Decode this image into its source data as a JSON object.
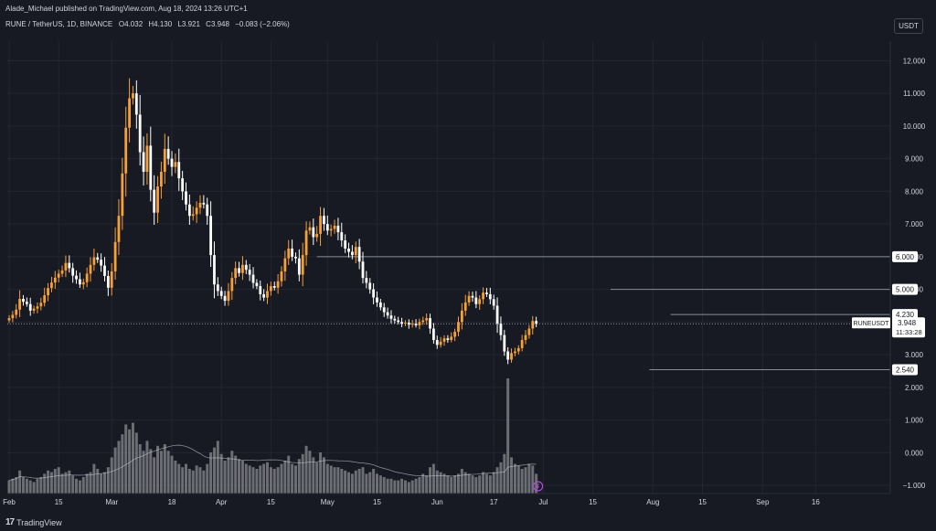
{
  "header": {
    "publisher_line": "Alade_Michael published on TradingView.com, Aug 18, 2024 13:26 UTC+1"
  },
  "legend": {
    "symbol": "RUNE / TetherUS, 1D, BINANCE",
    "o_label": "O",
    "o": "4.032",
    "h_label": "H",
    "h": "4.130",
    "l_label": "L",
    "l": "3.921",
    "c_label": "C",
    "c": "3.948",
    "change": "−0.083 (−2.06%)"
  },
  "currency_button": "USDT",
  "footer": {
    "brand": "TradingView",
    "logo": "17"
  },
  "colors": {
    "background": "#171a23",
    "up": "#f7a035",
    "down": "#ffffff",
    "grid": "#232632",
    "volume": "#8a8b90",
    "ma": "#d1d4dc",
    "label_bg": "#ffffff"
  },
  "chart_data": {
    "type": "candlestick",
    "title": "RUNE / TetherUS, 1D, BINANCE",
    "y_ticks": [
      12,
      11,
      10,
      9,
      8,
      7,
      6,
      5,
      4,
      3,
      2,
      1,
      0,
      -1
    ],
    "y_tick_labels": [
      "12.000",
      "11.000",
      "10.000",
      "9.000",
      "8.000",
      "7.000",
      "6.000",
      "5.000",
      "4.000",
      "3.000",
      "2.000",
      "1.000",
      "0.000",
      "−1.000"
    ],
    "ylim": [
      -1.25,
      12.6
    ],
    "x_tick_labels": [
      {
        "label": "Feb",
        "day": 0
      },
      {
        "label": "15",
        "day": 14
      },
      {
        "label": "Mar",
        "day": 29
      },
      {
        "label": "18",
        "day": 46
      },
      {
        "label": "Apr",
        "day": 60
      },
      {
        "label": "15",
        "day": 74
      },
      {
        "label": "May",
        "day": 90
      },
      {
        "label": "15",
        "day": 104
      },
      {
        "label": "Jun",
        "day": 121
      },
      {
        "label": "17",
        "day": 137
      },
      {
        "label": "Jul",
        "day": 151
      },
      {
        "label": "15",
        "day": 165
      },
      {
        "label": "Aug",
        "day": 182
      },
      {
        "label": "15",
        "day": 196
      },
      {
        "label": "Sep",
        "day": 213
      },
      {
        "label": "16",
        "day": 228
      }
    ],
    "horizontal_levels": [
      {
        "price": 6.0,
        "label": "6.000"
      },
      {
        "price": 5.0,
        "label": "5.000"
      },
      {
        "price": 4.23,
        "label": "4.230"
      },
      {
        "price": 2.54,
        "label": "2.540"
      }
    ],
    "last_price": {
      "symbol": "RUNEUSDT",
      "price": "3.948",
      "countdown": "11:33:28",
      "value": 3.948
    },
    "closes": [
      4.12,
      4.22,
      4.38,
      4.71,
      4.62,
      4.55,
      4.35,
      4.41,
      4.48,
      4.59,
      4.82,
      5.04,
      5.21,
      5.36,
      5.48,
      5.58,
      5.81,
      5.65,
      5.42,
      5.31,
      5.15,
      5.22,
      5.48,
      5.75,
      5.98,
      5.91,
      5.73,
      5.41,
      5.05,
      5.55,
      6.45,
      7.25,
      8.55,
      9.95,
      10.85,
      11.0,
      10.35,
      9.2,
      8.6,
      9.4,
      8.05,
      7.35,
      8.15,
      8.6,
      9.3,
      9.0,
      8.75,
      8.9,
      8.4,
      8.0,
      7.6,
      7.25,
      7.3,
      7.5,
      7.65,
      7.6,
      7.25,
      6.05,
      5.15,
      4.95,
      4.8,
      4.65,
      4.95,
      5.35,
      5.65,
      5.5,
      5.75,
      5.6,
      5.45,
      5.2,
      5.1,
      4.85,
      4.75,
      4.95,
      5.1,
      5.05,
      5.25,
      5.55,
      5.95,
      6.25,
      6.0,
      5.95,
      5.45,
      6.05,
      6.8,
      6.9,
      6.6,
      6.7,
      7.25,
      7.0,
      6.8,
      6.85,
      6.95,
      6.75,
      6.5,
      6.25,
      6.15,
      6.05,
      6.3,
      5.85,
      5.35,
      5.2,
      5.0,
      4.75,
      4.6,
      4.45,
      4.3,
      4.2,
      4.1,
      4.05,
      4.0,
      3.95,
      3.98,
      3.92,
      3.95,
      3.9,
      4.0,
      4.05,
      4.12,
      3.8,
      3.45,
      3.3,
      3.4,
      3.5,
      3.45,
      3.55,
      3.7,
      4.0,
      4.35,
      4.6,
      4.8,
      4.75,
      4.55,
      4.7,
      4.9,
      4.85,
      4.7,
      4.5,
      3.95,
      3.6,
      3.1,
      2.85,
      3.05,
      3.1,
      3.2,
      3.45,
      3.6,
      3.8,
      4.032,
      3.948
    ],
    "volume": [
      0.8,
      0.9,
      1.0,
      1.4,
      1.0,
      0.9,
      0.8,
      0.7,
      0.9,
      1.0,
      1.2,
      1.4,
      1.3,
      1.5,
      1.6,
      1.2,
      1.3,
      1.4,
      1.1,
      0.9,
      0.8,
      1.0,
      1.2,
      1.3,
      1.8,
      1.5,
      1.2,
      1.3,
      1.6,
      2.2,
      2.8,
      3.2,
      3.6,
      4.2,
      3.9,
      4.3,
      3.7,
      3.0,
      2.6,
      3.2,
      2.7,
      2.2,
      2.9,
      2.6,
      3.0,
      2.6,
      2.3,
      2.0,
      1.8,
      1.6,
      1.8,
      1.5,
      1.4,
      1.7,
      1.6,
      1.4,
      1.8,
      2.5,
      2.8,
      3.2,
      2.4,
      2.0,
      2.2,
      2.6,
      2.3,
      2.1,
      2.0,
      1.8,
      1.7,
      1.6,
      1.5,
      1.7,
      1.8,
      1.9,
      1.6,
      1.5,
      1.6,
      1.8,
      2.0,
      2.3,
      1.8,
      1.7,
      2.1,
      2.4,
      2.9,
      2.6,
      2.2,
      1.9,
      2.5,
      2.2,
      1.8,
      1.7,
      1.6,
      1.6,
      1.5,
      1.4,
      1.3,
      1.2,
      1.4,
      1.5,
      1.6,
      1.2,
      1.3,
      1.5,
      1.2,
      1.1,
      1.0,
      0.9,
      0.9,
      0.8,
      0.8,
      0.9,
      0.8,
      0.7,
      0.8,
      0.9,
      1.0,
      1.2,
      1.1,
      1.6,
      1.8,
      1.4,
      1.3,
      1.2,
      1.1,
      1.0,
      1.1,
      1.2,
      1.5,
      1.3,
      1.2,
      1.1,
      1.0,
      1.1,
      1.3,
      1.2,
      1.1,
      1.3,
      1.6,
      1.9,
      2.4,
      7.0,
      2.2,
      1.8,
      1.7,
      1.5,
      1.6,
      1.8,
      1.7,
      1.2
    ]
  }
}
